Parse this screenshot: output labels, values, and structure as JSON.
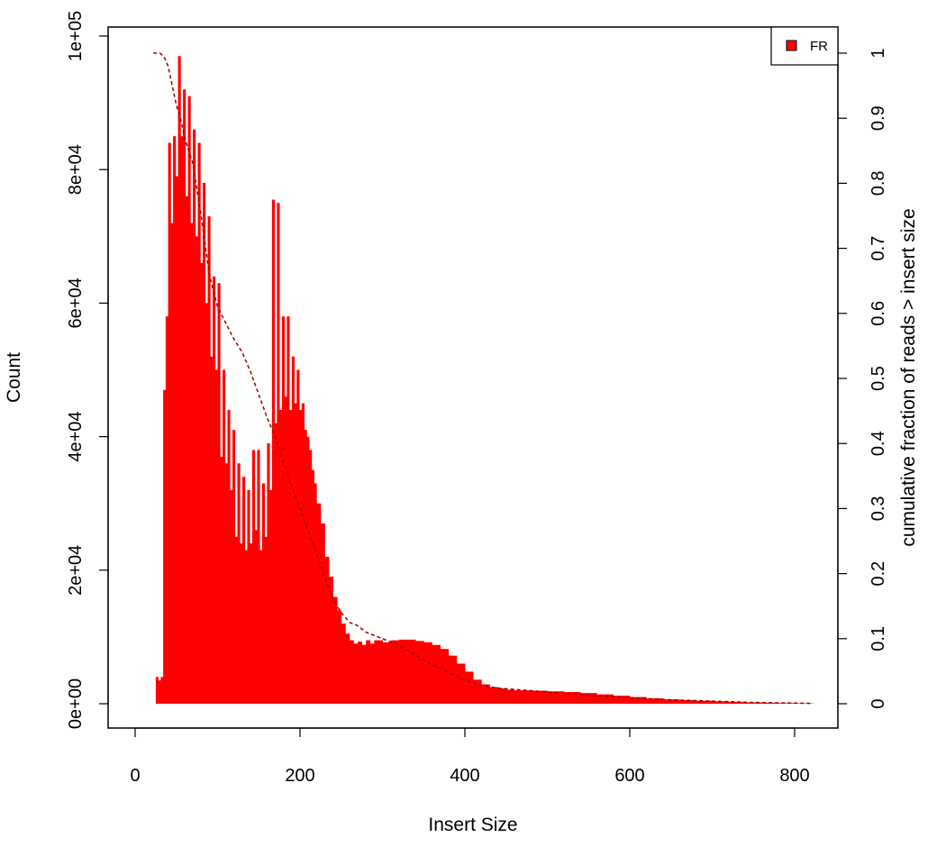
{
  "chart_data": {
    "type": "bar",
    "title": "",
    "xlabel": "Insert Size",
    "ylabel": "Count",
    "y2label": "cumulative fraction of reads > insert size",
    "xlim": [
      0,
      850
    ],
    "ylim": [
      0,
      100000
    ],
    "y2lim": [
      0,
      1
    ],
    "xticks": [
      0,
      200,
      400,
      600,
      800
    ],
    "xtick_labels": [
      "0",
      "200",
      "400",
      "600",
      "800"
    ],
    "yticks": [
      0,
      20000,
      40000,
      60000,
      80000,
      100000
    ],
    "ytick_labels": [
      "0e+00",
      "2e+04",
      "4e+04",
      "6e+04",
      "8e+04",
      "1e+05"
    ],
    "y2ticks": [
      0,
      0.1,
      0.2,
      0.3,
      0.4,
      0.5,
      0.6,
      0.7,
      0.8,
      0.9,
      1
    ],
    "y2tick_labels": [
      "0",
      "0.1",
      "0.2",
      "0.3",
      "0.4",
      "0.5",
      "0.6",
      "0.7",
      "0.8",
      "0.9",
      "1"
    ],
    "grid": false,
    "legend": {
      "position": "top-right",
      "entries": [
        {
          "label": "FR",
          "color": "#ff0000"
        }
      ]
    },
    "histogram": {
      "name": "FR",
      "color": "#ff0000",
      "x": [
        22,
        25,
        28,
        31,
        34,
        37,
        40,
        43,
        46,
        49,
        52,
        55,
        58,
        61,
        64,
        67,
        70,
        73,
        76,
        79,
        82,
        85,
        88,
        91,
        94,
        97,
        100,
        103,
        106,
        109,
        112,
        115,
        118,
        121,
        124,
        127,
        130,
        133,
        136,
        139,
        142,
        145,
        148,
        151,
        154,
        157,
        160,
        163,
        166,
        169,
        172,
        175,
        178,
        181,
        184,
        187,
        190,
        193,
        196,
        199,
        202,
        205,
        208,
        211,
        214,
        217,
        220,
        225,
        230,
        235,
        240,
        245,
        250,
        255,
        260,
        265,
        270,
        275,
        280,
        285,
        290,
        300,
        310,
        320,
        330,
        340,
        350,
        360,
        370,
        380,
        390,
        400,
        410,
        420,
        430,
        440,
        450,
        460,
        480,
        500,
        520,
        540,
        560,
        580,
        600,
        620,
        640,
        660,
        680,
        700,
        720,
        740,
        760,
        780,
        800,
        820
      ],
      "y": [
        0,
        4000,
        3500,
        4000,
        47000,
        58000,
        84000,
        72000,
        85000,
        79000,
        97000,
        85000,
        92000,
        76000,
        91000,
        72000,
        86000,
        70000,
        84000,
        66000,
        78000,
        60000,
        73000,
        52000,
        64000,
        50000,
        63000,
        37000,
        50000,
        36000,
        44000,
        32000,
        41000,
        25000,
        36000,
        24000,
        34000,
        23000,
        32000,
        24000,
        38000,
        26000,
        38000,
        23000,
        33000,
        25000,
        39000,
        32000,
        75500,
        42000,
        75000,
        44000,
        58000,
        46000,
        58000,
        44000,
        52000,
        45000,
        50000,
        44000,
        45000,
        41000,
        40000,
        38000,
        35000,
        33000,
        30000,
        27000,
        22000,
        19000,
        16000,
        14000,
        12000,
        10500,
        9500,
        9000,
        9300,
        8800,
        9500,
        9000,
        9500,
        9200,
        9500,
        9600,
        9600,
        9400,
        9200,
        8800,
        8200,
        7200,
        6000,
        4800,
        3600,
        2900,
        2500,
        2300,
        2100,
        2000,
        1950,
        1850,
        1750,
        1600,
        1400,
        1200,
        1000,
        800,
        650,
        550,
        450,
        350,
        280,
        200,
        150,
        100,
        70,
        40
      ]
    },
    "cumulative": {
      "name": "cumulative fraction of reads > insert size",
      "color": "#a00000",
      "style": "dashed",
      "x": [
        22,
        30,
        35,
        40,
        45,
        50,
        55,
        60,
        70,
        80,
        90,
        100,
        110,
        120,
        130,
        140,
        150,
        160,
        170,
        180,
        190,
        200,
        210,
        220,
        230,
        240,
        250,
        260,
        270,
        280,
        300,
        320,
        340,
        360,
        380,
        400,
        420,
        440,
        460,
        500,
        550,
        600,
        650,
        700,
        750,
        800,
        820
      ],
      "y": [
        1.0,
        1.0,
        0.995,
        0.98,
        0.95,
        0.92,
        0.9,
        0.87,
        0.83,
        0.75,
        0.66,
        0.61,
        0.585,
        0.56,
        0.54,
        0.51,
        0.475,
        0.44,
        0.41,
        0.37,
        0.335,
        0.3,
        0.265,
        0.23,
        0.195,
        0.16,
        0.14,
        0.125,
        0.12,
        0.11,
        0.1,
        0.09,
        0.075,
        0.06,
        0.048,
        0.036,
        0.028,
        0.024,
        0.022,
        0.018,
        0.013,
        0.009,
        0.006,
        0.004,
        0.002,
        0.001,
        0.0005
      ]
    }
  }
}
